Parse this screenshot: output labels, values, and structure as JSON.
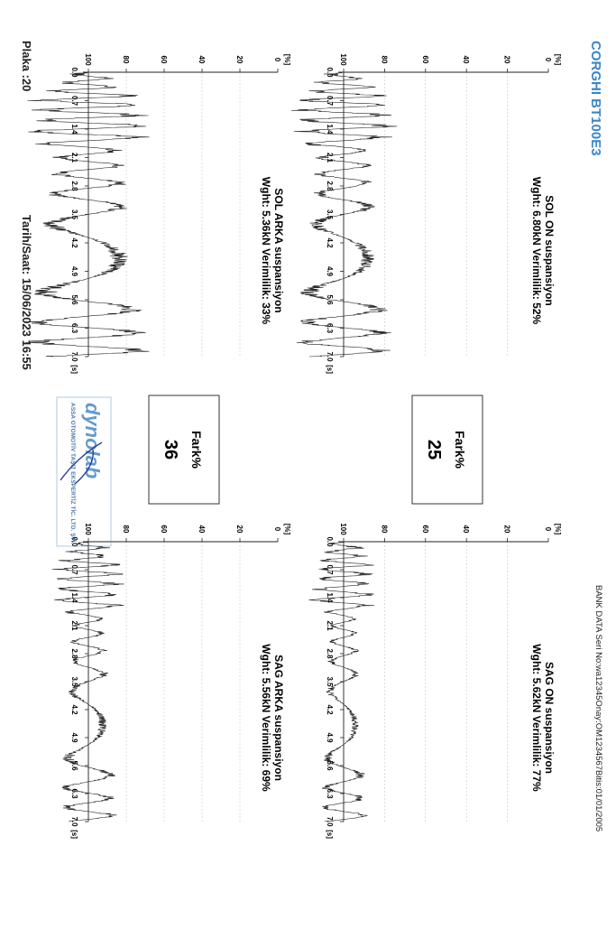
{
  "header": {
    "model": "CORGHI BT100E3",
    "bank_data": "BANK DATA  Seri No:wa12345Onay:OM1234567Bitis:01/01/2005"
  },
  "footer": {
    "plaka": "Plaka :20",
    "tarih": "Tarih/Saat: 15/06/2023  16:55"
  },
  "stamp": {
    "logo": "dynolab",
    "company": "ASSA OTOMOTİV TAŞIT EKSPERTİZ TİC. LTD. ŞTİ."
  },
  "chart_data": [
    {
      "type": "line",
      "title": "SOL ON suspansiyon",
      "subtitle": "Wght: 6.80kN   Verimlilik: 52%",
      "ylabel": "[%]",
      "xlabel": "[s]",
      "ylim": [
        0,
        100
      ],
      "xlim": [
        0,
        7
      ],
      "yticks": [
        "0",
        "20",
        "40",
        "60",
        "80",
        "100"
      ],
      "xticks": [
        "0.0",
        "0.7",
        "1.4",
        "2.1",
        "2.8",
        "3.5",
        "4.2",
        "4.9",
        "5.6",
        "6.3",
        "7.0"
      ],
      "efficiency": 52,
      "weight_kN": 6.8
    },
    {
      "type": "line",
      "title": "SAG ON suspansiyon",
      "subtitle": "Wght: 5.62kN   Verimlilik: 77%",
      "ylabel": "[%]",
      "xlabel": "[s]",
      "ylim": [
        0,
        100
      ],
      "xlim": [
        0,
        7
      ],
      "yticks": [
        "0",
        "20",
        "40",
        "60",
        "80",
        "100"
      ],
      "xticks": [
        "0.0",
        "0.7",
        "1.4",
        "2.1",
        "2.8",
        "3.5",
        "4.2",
        "4.9",
        "5.6",
        "6.3",
        "7.0"
      ],
      "efficiency": 77,
      "weight_kN": 5.62
    },
    {
      "type": "line",
      "title": "SOL ARKA suspansiyon",
      "subtitle": "Wght: 5.36kN   Verimlilik: 33%",
      "ylabel": "[%]",
      "xlabel": "[s]",
      "ylim": [
        0,
        100
      ],
      "xlim": [
        0,
        7
      ],
      "yticks": [
        "0",
        "20",
        "40",
        "60",
        "80",
        "100"
      ],
      "xticks": [
        "0.0",
        "0.7",
        "1.4",
        "2.1",
        "2.8",
        "3.5",
        "4.2",
        "4.9",
        "5.6",
        "6.3",
        "7.0"
      ],
      "efficiency": 33,
      "weight_kN": 5.36
    },
    {
      "type": "line",
      "title": "SAG ARKA suspansiyon",
      "subtitle": "Wght: 5.56kN   Verimlilik: 69%",
      "ylabel": "[%]",
      "xlabel": "[s]",
      "ylim": [
        0,
        100
      ],
      "xlim": [
        0,
        7
      ],
      "yticks": [
        "0",
        "20",
        "40",
        "60",
        "80",
        "100"
      ],
      "xticks": [
        "0.0",
        "0.7",
        "1.4",
        "2.1",
        "2.8",
        "3.5",
        "4.2",
        "4.9",
        "5.6",
        "6.3",
        "7.0"
      ],
      "efficiency": 69,
      "weight_kN": 5.56
    }
  ],
  "fark_boxes": [
    {
      "label": "Fark%",
      "value": "25"
    },
    {
      "label": "Fark%",
      "value": "36"
    }
  ]
}
